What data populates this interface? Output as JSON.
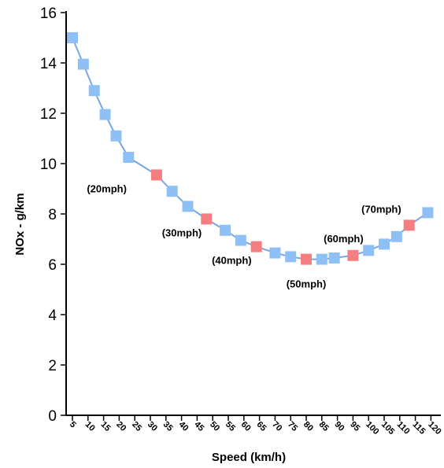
{
  "chart_data": {
    "type": "line",
    "title": "",
    "xlabel": "Speed (km/h)",
    "ylabel": "NOx - g/km",
    "x": [
      5,
      10,
      15,
      20,
      25,
      30,
      35,
      40,
      45,
      50,
      55,
      60,
      65,
      70,
      75,
      80,
      85,
      90,
      95,
      100,
      105,
      110,
      115,
      120
    ],
    "x_tick_labels": [
      "5",
      "10",
      "15",
      "20",
      "25",
      "30",
      "35",
      "40",
      "45",
      "50",
      "55",
      "60",
      "65",
      "70",
      "75",
      "80",
      "85",
      "90",
      "95",
      "100",
      "105",
      "110",
      "115",
      "120"
    ],
    "y_ticks": [
      0,
      2,
      4,
      6,
      8,
      10,
      12,
      14,
      16
    ],
    "ylim": [
      0,
      16
    ],
    "grid": false,
    "series": [
      {
        "points": [
          {
            "x": 5,
            "y": 15.0,
            "highlight": false
          },
          {
            "x": 8.5,
            "y": 13.95,
            "highlight": false
          },
          {
            "x": 12,
            "y": 12.9,
            "highlight": false
          },
          {
            "x": 15.5,
            "y": 11.95,
            "highlight": false
          },
          {
            "x": 19,
            "y": 11.1,
            "highlight": false
          },
          {
            "x": 23,
            "y": 10.25,
            "highlight": false
          },
          {
            "x": 32,
            "y": 9.55,
            "highlight": true
          },
          {
            "x": 37,
            "y": 8.9,
            "highlight": false
          },
          {
            "x": 42,
            "y": 8.3,
            "highlight": false
          },
          {
            "x": 48,
            "y": 7.8,
            "highlight": true
          },
          {
            "x": 54,
            "y": 7.35,
            "highlight": false
          },
          {
            "x": 59,
            "y": 6.95,
            "highlight": false
          },
          {
            "x": 64,
            "y": 6.7,
            "highlight": true
          },
          {
            "x": 70,
            "y": 6.45,
            "highlight": false
          },
          {
            "x": 75,
            "y": 6.3,
            "highlight": false
          },
          {
            "x": 80,
            "y": 6.2,
            "highlight": true
          },
          {
            "x": 85,
            "y": 6.2,
            "highlight": false
          },
          {
            "x": 89,
            "y": 6.25,
            "highlight": false
          },
          {
            "x": 95,
            "y": 6.35,
            "highlight": true
          },
          {
            "x": 100,
            "y": 6.55,
            "highlight": false
          },
          {
            "x": 105,
            "y": 6.8,
            "highlight": false
          },
          {
            "x": 109,
            "y": 7.1,
            "highlight": false
          },
          {
            "x": 113,
            "y": 7.55,
            "highlight": true
          },
          {
            "x": 119,
            "y": 8.05,
            "highlight": false
          }
        ]
      }
    ],
    "annotations": [
      {
        "text": "(20mph)",
        "x": 32,
        "y": 9.55
      },
      {
        "text": "(30mph)",
        "x": 48,
        "y": 7.8
      },
      {
        "text": "(40mph)",
        "x": 64,
        "y": 6.7
      },
      {
        "text": "(50mph)",
        "x": 80,
        "y": 6.2
      },
      {
        "text": "(60mph)",
        "x": 95,
        "y": 6.35
      },
      {
        "text": "(70mph)",
        "x": 113,
        "y": 7.55
      }
    ],
    "colors": {
      "marker": "#8fc0f5",
      "marker_highlight": "#f57f80",
      "line": "#76a6e6"
    }
  }
}
